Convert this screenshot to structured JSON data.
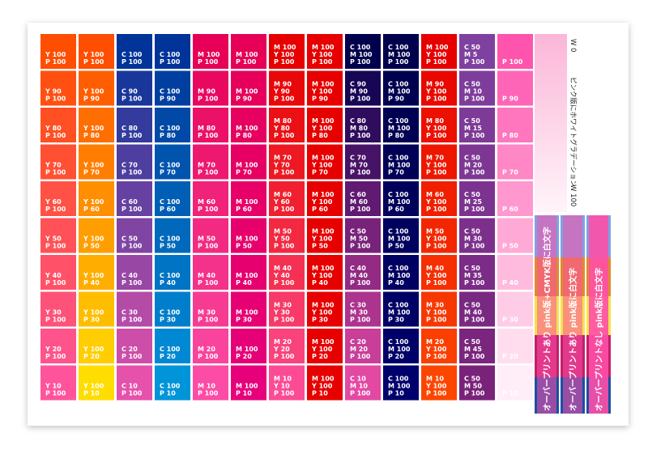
{
  "grid": {
    "rows": [
      [
        [
          "Y 100",
          "P 100"
        ],
        [
          "Y 100",
          "P 100"
        ],
        [
          "C 100",
          "P 100"
        ],
        [
          "C 100",
          "P 100"
        ],
        [
          "M 100",
          "P 100"
        ],
        [
          "M 100",
          "P 100"
        ],
        [
          "M 100",
          "Y 100",
          "P 100"
        ],
        [
          "M 100",
          "Y 100",
          "P 100"
        ],
        [
          "C 100",
          "M 100",
          "P 100"
        ],
        [
          "C 100",
          "M 100",
          "P 100"
        ],
        [
          "M 100",
          "Y 100",
          "P 100"
        ],
        [
          "C 50",
          "M 5",
          "P 100"
        ],
        [
          "P 100"
        ]
      ],
      [
        [
          "Y 90",
          "P 100"
        ],
        [
          "Y 100",
          "P 90"
        ],
        [
          "C 90",
          "P 100"
        ],
        [
          "C 100",
          "P 90"
        ],
        [
          "M 90",
          "P 100"
        ],
        [
          "M 100",
          "P 90"
        ],
        [
          "M 90",
          "Y 90",
          "P 100"
        ],
        [
          "M 100",
          "Y 100",
          "P 90"
        ],
        [
          "C 90",
          "M 90",
          "P 100"
        ],
        [
          "C 100",
          "M 100",
          "P 90"
        ],
        [
          "M 90",
          "Y 100",
          "P 100"
        ],
        [
          "C 50",
          "M 10",
          "P 100"
        ],
        [
          "P 90"
        ]
      ],
      [
        [
          "Y 80",
          "P 100"
        ],
        [
          "Y 100",
          "P 80"
        ],
        [
          "C 80",
          "P 100"
        ],
        [
          "C 100",
          "P 80"
        ],
        [
          "M 80",
          "P 100"
        ],
        [
          "M 100",
          "P 80"
        ],
        [
          "M 80",
          "Y 80",
          "P 100"
        ],
        [
          "M 100",
          "Y 100",
          "P 80"
        ],
        [
          "C 80",
          "M 80",
          "P 100"
        ],
        [
          "C 100",
          "M 100",
          "P 80"
        ],
        [
          "M 80",
          "Y 100",
          "P 100"
        ],
        [
          "C 50",
          "M 15",
          "P 100"
        ],
        [
          "P 80"
        ]
      ],
      [
        [
          "Y 70",
          "P 100"
        ],
        [
          "Y 100",
          "P 70"
        ],
        [
          "C 70",
          "P 100"
        ],
        [
          "C 100",
          "P 70"
        ],
        [
          "M 70",
          "P 100"
        ],
        [
          "M 100",
          "P 70"
        ],
        [
          "M 70",
          "Y 70",
          "P 100"
        ],
        [
          "M 100",
          "Y 100",
          "P 70"
        ],
        [
          "C 70",
          "M 70",
          "P 100"
        ],
        [
          "C 100",
          "M 100",
          "P 70"
        ],
        [
          "M 70",
          "Y 100",
          "P 100"
        ],
        [
          "C 50",
          "M 20",
          "P 100"
        ],
        [
          "P 70"
        ]
      ],
      [
        [
          "Y 60",
          "P 100"
        ],
        [
          "Y 100",
          "P 60"
        ],
        [
          "C 60",
          "P 100"
        ],
        [
          "C 100",
          "P 60"
        ],
        [
          "M 60",
          "P 100"
        ],
        [
          "M 100",
          "P 60"
        ],
        [
          "M 60",
          "Y 60",
          "P 100"
        ],
        [
          "M 100",
          "Y 100",
          "P 60"
        ],
        [
          "C 60",
          "M 60",
          "P 100"
        ],
        [
          "C 100",
          "M 100",
          "P 60"
        ],
        [
          "M 60",
          "Y 100",
          "P 100"
        ],
        [
          "C 50",
          "M 25",
          "P 100"
        ],
        [
          "P 60"
        ]
      ],
      [
        [
          "Y 50",
          "P 100"
        ],
        [
          "Y 100",
          "P 50"
        ],
        [
          "C 50",
          "P 100"
        ],
        [
          "C 100",
          "P 50"
        ],
        [
          "M 50",
          "P 100"
        ],
        [
          "M 100",
          "P 50"
        ],
        [
          "M 50",
          "Y 50",
          "P 100"
        ],
        [
          "M 100",
          "Y 100",
          "P 50"
        ],
        [
          "C 50",
          "M 50",
          "P 100"
        ],
        [
          "C 100",
          "M 100",
          "P 50"
        ],
        [
          "M 50",
          "Y 100",
          "P 100"
        ],
        [
          "C 50",
          "M 30",
          "P 100"
        ],
        [
          "P 50"
        ]
      ],
      [
        [
          "Y 40",
          "P 100"
        ],
        [
          "Y 100",
          "P 40"
        ],
        [
          "C 40",
          "P 100"
        ],
        [
          "C 100",
          "P 40"
        ],
        [
          "M 40",
          "P 100"
        ],
        [
          "M 100",
          "P 40"
        ],
        [
          "M 40",
          "Y 40",
          "P 100"
        ],
        [
          "M 100",
          "Y 100",
          "P 40"
        ],
        [
          "C 40",
          "M 40",
          "P 100"
        ],
        [
          "C 100",
          "M 100",
          "P 40"
        ],
        [
          "M 40",
          "Y 100",
          "P 100"
        ],
        [
          "C 50",
          "M 35",
          "P 100"
        ],
        [
          "P 40"
        ]
      ],
      [
        [
          "Y 30",
          "P 100"
        ],
        [
          "Y 100",
          "P 30"
        ],
        [
          "C 30",
          "P 100"
        ],
        [
          "C 100",
          "P 30"
        ],
        [
          "M 30",
          "P 100"
        ],
        [
          "M 100",
          "P 30"
        ],
        [
          "M 30",
          "Y 30",
          "P 100"
        ],
        [
          "M 100",
          "Y 100",
          "P 30"
        ],
        [
          "C 30",
          "M 30",
          "P 100"
        ],
        [
          "C 100",
          "M 100",
          "P 30"
        ],
        [
          "M 30",
          "Y 100",
          "P 100"
        ],
        [
          "C 50",
          "M 40",
          "P 100"
        ],
        [
          "P 30"
        ]
      ],
      [
        [
          "Y 20",
          "P 100"
        ],
        [
          "Y 100",
          "P 20"
        ],
        [
          "C 20",
          "P 100"
        ],
        [
          "C 100",
          "P 20"
        ],
        [
          "M 20",
          "P 100"
        ],
        [
          "M 100",
          "P 20"
        ],
        [
          "M 20",
          "Y 20",
          "P 100"
        ],
        [
          "M 100",
          "Y 100",
          "P 20"
        ],
        [
          "C 20",
          "M 20",
          "P 100"
        ],
        [
          "C 100",
          "M 100",
          "P 20"
        ],
        [
          "M 20",
          "Y 100",
          "P 100"
        ],
        [
          "C 50",
          "M 45",
          "P 100"
        ],
        [
          "P 20"
        ]
      ],
      [
        [
          "Y 10",
          "P 100"
        ],
        [
          "Y 100",
          "P 10"
        ],
        [
          "C 10",
          "P 100"
        ],
        [
          "C 100",
          "P 10"
        ],
        [
          "M 10",
          "P 100"
        ],
        [
          "M 100",
          "P 10"
        ],
        [
          "M 10",
          "Y 10",
          "P 100"
        ],
        [
          "M 100",
          "Y 100",
          "P 10"
        ],
        [
          "C 10",
          "M 10",
          "P 100"
        ],
        [
          "C 100",
          "M 100",
          "P 10"
        ],
        [
          "M 10",
          "Y 100",
          "P 100"
        ],
        [
          "C 50",
          "M 50",
          "P 100"
        ],
        [
          "P 10"
        ]
      ]
    ]
  },
  "side": {
    "title": "ピンク版にホワイトグラデーション",
    "w0": "W 0",
    "w100": "W 100",
    "stripes": [
      "オーバープリントあり pink版+CMYK版に白文字",
      "オーバープリントあり pink版に白文字",
      "オーバープリントなし pink版に白文字"
    ]
  }
}
